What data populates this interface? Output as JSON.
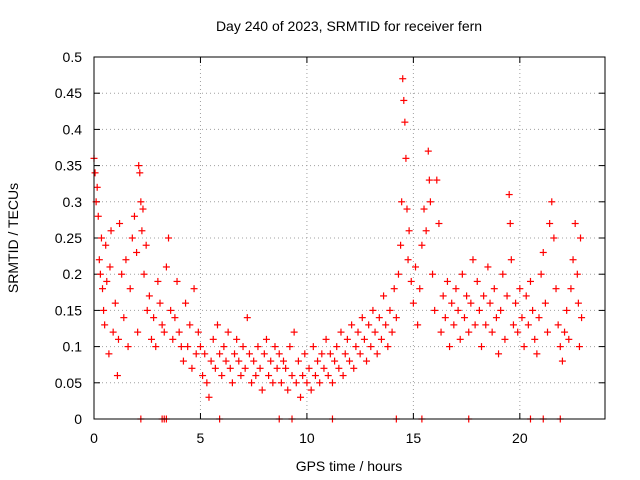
{
  "chart_data": {
    "type": "scatter",
    "title": "Day 240 of 2023, SRMTID for receiver fern",
    "xlabel": "GPS time / hours",
    "ylabel": "SRMTID / TECUs",
    "xlim": [
      0,
      24
    ],
    "ylim": [
      0,
      0.5
    ],
    "x_ticks": [
      0,
      5,
      10,
      15,
      20
    ],
    "y_ticks": [
      0,
      0.05,
      0.1,
      0.15,
      0.2,
      0.25,
      0.3,
      0.35,
      0.4,
      0.45,
      0.5
    ],
    "x_tick_labels": [
      "0",
      "5",
      "10",
      "15",
      "20"
    ],
    "y_tick_labels": [
      "0",
      "0.05",
      "0.1",
      "0.15",
      "0.2",
      "0.25",
      "0.3",
      "0.35",
      "0.4",
      "0.45",
      "0.5"
    ],
    "grid": true,
    "marker": "+",
    "color": "#ff0000",
    "series": [
      {
        "name": "SRMTID",
        "points": [
          [
            0.0,
            0.36
          ],
          [
            0.05,
            0.34
          ],
          [
            0.1,
            0.3
          ],
          [
            0.15,
            0.32
          ],
          [
            0.2,
            0.28
          ],
          [
            0.25,
            0.22
          ],
          [
            0.3,
            0.2
          ],
          [
            0.35,
            0.25
          ],
          [
            0.4,
            0.18
          ],
          [
            0.45,
            0.15
          ],
          [
            0.5,
            0.13
          ],
          [
            0.55,
            0.24
          ],
          [
            0.6,
            0.19
          ],
          [
            0.7,
            0.09
          ],
          [
            0.75,
            0.21
          ],
          [
            0.8,
            0.26
          ],
          [
            0.9,
            0.12
          ],
          [
            1.0,
            0.16
          ],
          [
            1.1,
            0.06
          ],
          [
            1.15,
            0.11
          ],
          [
            1.2,
            0.27
          ],
          [
            1.3,
            0.2
          ],
          [
            1.4,
            0.14
          ],
          [
            1.5,
            0.22
          ],
          [
            1.6,
            0.1
          ],
          [
            1.7,
            0.18
          ],
          [
            1.8,
            0.25
          ],
          [
            1.9,
            0.28
          ],
          [
            2.0,
            0.23
          ],
          [
            2.05,
            0.12
          ],
          [
            2.1,
            0.35
          ],
          [
            2.15,
            0.34
          ],
          [
            2.2,
            0.3
          ],
          [
            2.25,
            0.26
          ],
          [
            2.3,
            0.29
          ],
          [
            2.35,
            0.2
          ],
          [
            2.45,
            0.24
          ],
          [
            2.5,
            0.15
          ],
          [
            2.6,
            0.17
          ],
          [
            2.7,
            0.11
          ],
          [
            2.8,
            0.14
          ],
          [
            2.9,
            0.1
          ],
          [
            3.0,
            0.19
          ],
          [
            3.1,
            0.16
          ],
          [
            3.2,
            0.13
          ],
          [
            3.3,
            0.12
          ],
          [
            3.4,
            0.21
          ],
          [
            3.5,
            0.25
          ],
          [
            3.6,
            0.15
          ],
          [
            3.7,
            0.11
          ],
          [
            3.8,
            0.14
          ],
          [
            3.9,
            0.19
          ],
          [
            4.0,
            0.12
          ],
          [
            4.1,
            0.1
          ],
          [
            4.2,
            0.08
          ],
          [
            4.3,
            0.16
          ],
          [
            4.4,
            0.1
          ],
          [
            4.5,
            0.13
          ],
          [
            4.6,
            0.07
          ],
          [
            4.7,
            0.18
          ],
          [
            4.8,
            0.09
          ],
          [
            4.9,
            0.12
          ],
          [
            5.0,
            0.1
          ],
          [
            5.1,
            0.06
          ],
          [
            5.2,
            0.09
          ],
          [
            5.3,
            0.05
          ],
          [
            5.4,
            0.03
          ],
          [
            5.5,
            0.08
          ],
          [
            5.6,
            0.11
          ],
          [
            5.7,
            0.07
          ],
          [
            5.8,
            0.13
          ],
          [
            5.9,
            0.09
          ],
          [
            6.0,
            0.06
          ],
          [
            6.1,
            0.1
          ],
          [
            6.2,
            0.08
          ],
          [
            6.3,
            0.12
          ],
          [
            6.4,
            0.07
          ],
          [
            6.5,
            0.05
          ],
          [
            6.6,
            0.09
          ],
          [
            6.7,
            0.11
          ],
          [
            6.8,
            0.08
          ],
          [
            6.9,
            0.06
          ],
          [
            7.0,
            0.1
          ],
          [
            7.1,
            0.07
          ],
          [
            7.2,
            0.14
          ],
          [
            7.3,
            0.09
          ],
          [
            7.4,
            0.05
          ],
          [
            7.5,
            0.08
          ],
          [
            7.6,
            0.06
          ],
          [
            7.7,
            0.1
          ],
          [
            7.8,
            0.07
          ],
          [
            7.9,
            0.04
          ],
          [
            8.0,
            0.09
          ],
          [
            8.1,
            0.11
          ],
          [
            8.2,
            0.06
          ],
          [
            8.3,
            0.08
          ],
          [
            8.4,
            0.05
          ],
          [
            8.5,
            0.1
          ],
          [
            8.6,
            0.07
          ],
          [
            8.7,
            0.09
          ],
          [
            8.8,
            0.05
          ],
          [
            8.9,
            0.08
          ],
          [
            9.0,
            0.07
          ],
          [
            9.1,
            0.04
          ],
          [
            9.2,
            0.1
          ],
          [
            9.3,
            0.06
          ],
          [
            9.4,
            0.12
          ],
          [
            9.5,
            0.05
          ],
          [
            9.6,
            0.08
          ],
          [
            9.7,
            0.03
          ],
          [
            9.8,
            0.06
          ],
          [
            9.9,
            0.09
          ],
          [
            10.0,
            0.05
          ],
          [
            10.1,
            0.07
          ],
          [
            10.2,
            0.04
          ],
          [
            10.3,
            0.1
          ],
          [
            10.4,
            0.06
          ],
          [
            10.5,
            0.08
          ],
          [
            10.6,
            0.05
          ],
          [
            10.7,
            0.09
          ],
          [
            10.8,
            0.07
          ],
          [
            10.9,
            0.11
          ],
          [
            11.0,
            0.06
          ],
          [
            11.1,
            0.09
          ],
          [
            11.2,
            0.05
          ],
          [
            11.3,
            0.08
          ],
          [
            11.4,
            0.1
          ],
          [
            11.5,
            0.07
          ],
          [
            11.6,
            0.12
          ],
          [
            11.7,
            0.06
          ],
          [
            11.8,
            0.09
          ],
          [
            11.9,
            0.11
          ],
          [
            12.0,
            0.08
          ],
          [
            12.1,
            0.13
          ],
          [
            12.2,
            0.07
          ],
          [
            12.3,
            0.1
          ],
          [
            12.4,
            0.12
          ],
          [
            12.5,
            0.09
          ],
          [
            12.6,
            0.14
          ],
          [
            12.7,
            0.11
          ],
          [
            12.8,
            0.08
          ],
          [
            12.9,
            0.13
          ],
          [
            13.0,
            0.1
          ],
          [
            13.1,
            0.15
          ],
          [
            13.2,
            0.12
          ],
          [
            13.3,
            0.09
          ],
          [
            13.4,
            0.14
          ],
          [
            13.5,
            0.11
          ],
          [
            13.6,
            0.17
          ],
          [
            13.7,
            0.13
          ],
          [
            13.8,
            0.1
          ],
          [
            13.9,
            0.15
          ],
          [
            14.0,
            0.12
          ],
          [
            14.1,
            0.18
          ],
          [
            14.2,
            0.14
          ],
          [
            14.3,
            0.2
          ],
          [
            14.4,
            0.24
          ],
          [
            14.45,
            0.3
          ],
          [
            14.5,
            0.47
          ],
          [
            14.55,
            0.44
          ],
          [
            14.6,
            0.41
          ],
          [
            14.65,
            0.36
          ],
          [
            14.7,
            0.29
          ],
          [
            14.75,
            0.22
          ],
          [
            14.8,
            0.26
          ],
          [
            14.9,
            0.19
          ],
          [
            15.0,
            0.16
          ],
          [
            15.1,
            0.21
          ],
          [
            15.2,
            0.13
          ],
          [
            15.3,
            0.18
          ],
          [
            15.4,
            0.24
          ],
          [
            15.5,
            0.29
          ],
          [
            15.6,
            0.26
          ],
          [
            15.7,
            0.37
          ],
          [
            15.75,
            0.33
          ],
          [
            15.8,
            0.3
          ],
          [
            15.9,
            0.2
          ],
          [
            16.0,
            0.15
          ],
          [
            16.1,
            0.33
          ],
          [
            16.2,
            0.27
          ],
          [
            16.3,
            0.12
          ],
          [
            16.4,
            0.17
          ],
          [
            16.5,
            0.14
          ],
          [
            16.6,
            0.19
          ],
          [
            16.7,
            0.1
          ],
          [
            16.8,
            0.16
          ],
          [
            16.9,
            0.13
          ],
          [
            17.0,
            0.18
          ],
          [
            17.1,
            0.15
          ],
          [
            17.2,
            0.11
          ],
          [
            17.3,
            0.2
          ],
          [
            17.4,
            0.14
          ],
          [
            17.5,
            0.17
          ],
          [
            17.6,
            0.12
          ],
          [
            17.7,
            0.16
          ],
          [
            17.8,
            0.22
          ],
          [
            17.9,
            0.13
          ],
          [
            18.0,
            0.19
          ],
          [
            18.1,
            0.15
          ],
          [
            18.2,
            0.1
          ],
          [
            18.3,
            0.17
          ],
          [
            18.4,
            0.13
          ],
          [
            18.5,
            0.21
          ],
          [
            18.6,
            0.16
          ],
          [
            18.7,
            0.12
          ],
          [
            18.8,
            0.18
          ],
          [
            18.9,
            0.14
          ],
          [
            19.0,
            0.09
          ],
          [
            19.1,
            0.15
          ],
          [
            19.2,
            0.2
          ],
          [
            19.3,
            0.11
          ],
          [
            19.4,
            0.17
          ],
          [
            19.5,
            0.31
          ],
          [
            19.55,
            0.27
          ],
          [
            19.6,
            0.22
          ],
          [
            19.7,
            0.13
          ],
          [
            19.8,
            0.16
          ],
          [
            19.9,
            0.12
          ],
          [
            20.0,
            0.18
          ],
          [
            20.1,
            0.14
          ],
          [
            20.2,
            0.1
          ],
          [
            20.3,
            0.17
          ],
          [
            20.4,
            0.13
          ],
          [
            20.5,
            0.19
          ],
          [
            20.6,
            0.15
          ],
          [
            20.7,
            0.11
          ],
          [
            20.8,
            0.09
          ],
          [
            20.9,
            0.14
          ],
          [
            21.0,
            0.2
          ],
          [
            21.1,
            0.23
          ],
          [
            21.2,
            0.16
          ],
          [
            21.3,
            0.12
          ],
          [
            21.4,
            0.27
          ],
          [
            21.5,
            0.3
          ],
          [
            21.6,
            0.25
          ],
          [
            21.7,
            0.18
          ],
          [
            21.8,
            0.13
          ],
          [
            21.9,
            0.1
          ],
          [
            22.0,
            0.08
          ],
          [
            22.1,
            0.12
          ],
          [
            22.2,
            0.15
          ],
          [
            22.3,
            0.11
          ],
          [
            22.4,
            0.18
          ],
          [
            22.5,
            0.22
          ],
          [
            22.6,
            0.27
          ],
          [
            22.7,
            0.2
          ],
          [
            22.75,
            0.16
          ],
          [
            22.8,
            0.1
          ],
          [
            22.85,
            0.25
          ],
          [
            22.9,
            0.14
          ]
        ]
      }
    ],
    "zero_markers_x": [
      2.2,
      3.2,
      3.3,
      3.4,
      5.9,
      8.7,
      9.3,
      11.2,
      14.2,
      15.4,
      17.6,
      20.5,
      21.1,
      21.9
    ]
  }
}
